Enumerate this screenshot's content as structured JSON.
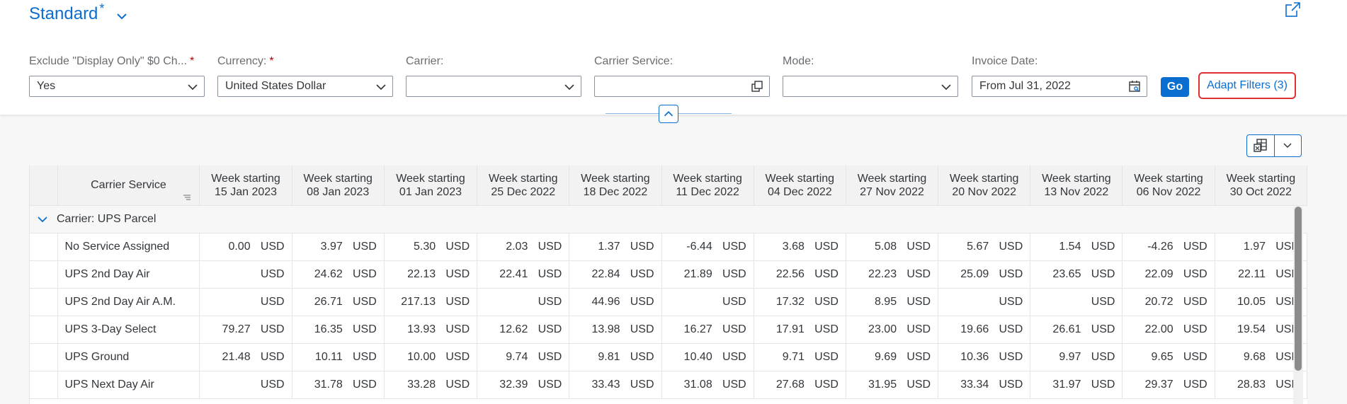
{
  "header": {
    "variant_name": "Standard",
    "variant_modified": "*"
  },
  "filters": [
    {
      "label": "Exclude \"Display Only\" $0 Ch...",
      "required": "*",
      "value": "Yes",
      "type": "select"
    },
    {
      "label": "Currency:",
      "required": "*",
      "value": "United States Dollar",
      "type": "select"
    },
    {
      "label": "Carrier:",
      "required": "",
      "value": "",
      "type": "select"
    },
    {
      "label": "Carrier Service:",
      "required": "",
      "value": "",
      "type": "valuehelp"
    },
    {
      "label": "Mode:",
      "required": "",
      "value": "",
      "type": "select"
    },
    {
      "label": "Invoice Date:",
      "required": "",
      "value": "From Jul 31, 2022",
      "type": "date"
    }
  ],
  "buttons": {
    "go": "Go",
    "adapt_filters": "Adapt Filters (3)"
  },
  "table": {
    "service_header": "Carrier Service",
    "week_headers": [
      "Week starting\n15 Jan 2023",
      "Week starting\n08 Jan 2023",
      "Week starting\n01 Jan 2023",
      "Week starting\n25 Dec 2022",
      "Week starting\n18 Dec 2022",
      "Week starting\n11 Dec 2022",
      "Week starting\n04 Dec 2022",
      "Week starting\n27 Nov 2022",
      "Week starting\n20 Nov 2022",
      "Week starting\n13 Nov 2022",
      "Week starting\n06 Nov 2022",
      "Week starting\n30 Oct 2022"
    ],
    "group_label": "Carrier: UPS Parcel",
    "currency": "USD",
    "rows": [
      {
        "service": "No Service Assigned",
        "values": [
          "0.00",
          "3.97",
          "5.30",
          "2.03",
          "1.37",
          "-6.44",
          "3.68",
          "5.08",
          "5.67",
          "1.54",
          "-4.26",
          "1.97"
        ]
      },
      {
        "service": "UPS 2nd Day Air",
        "values": [
          "",
          "24.62",
          "22.13",
          "22.41",
          "22.84",
          "21.89",
          "22.56",
          "22.23",
          "25.09",
          "23.65",
          "22.09",
          "22.11"
        ]
      },
      {
        "service": "UPS 2nd Day Air A.M.",
        "values": [
          "",
          "26.71",
          "217.13",
          "",
          "44.96",
          "",
          "17.32",
          "8.95",
          "",
          "",
          "20.72",
          "10.05"
        ]
      },
      {
        "service": "UPS 3-Day Select",
        "values": [
          "79.27",
          "16.35",
          "13.93",
          "12.62",
          "13.98",
          "16.27",
          "17.91",
          "23.00",
          "19.66",
          "26.61",
          "22.00",
          "19.54"
        ]
      },
      {
        "service": "UPS Ground",
        "values": [
          "21.48",
          "10.11",
          "10.00",
          "9.74",
          "9.81",
          "10.40",
          "9.71",
          "9.69",
          "10.36",
          "9.97",
          "9.65",
          "9.68"
        ]
      },
      {
        "service": "UPS Next Day Air",
        "values": [
          "",
          "31.78",
          "33.28",
          "32.39",
          "33.43",
          "31.08",
          "27.68",
          "31.95",
          "33.34",
          "31.97",
          "29.37",
          "28.83"
        ]
      }
    ]
  }
}
